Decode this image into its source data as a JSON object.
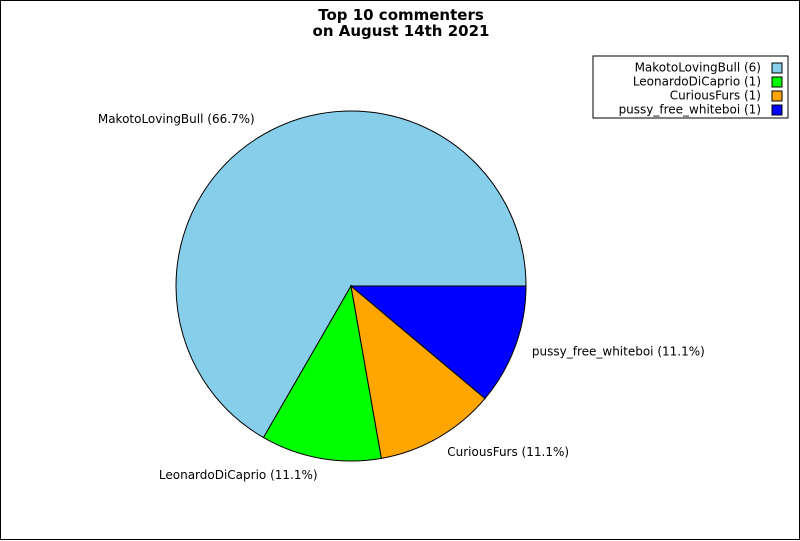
{
  "chart_data": {
    "type": "pie",
    "title_lines": [
      "Top 10 commenters",
      "on August 14th 2021"
    ],
    "slices": [
      {
        "name": "MakotoLovingBull",
        "value": 6,
        "percent_label": "MakotoLovingBull (66.7%)",
        "legend_label": "MakotoLovingBull (6)",
        "color": "#87ceeb"
      },
      {
        "name": "LeonardoDiCaprio",
        "value": 1,
        "percent_label": "LeonardoDiCaprio (11.1%)",
        "legend_label": "LeonardoDiCaprio (1)",
        "color": "#00ff00"
      },
      {
        "name": "CuriousFurs",
        "value": 1,
        "percent_label": "CuriousFurs (11.1%)",
        "legend_label": "CuriousFurs (1)",
        "color": "#ffa500"
      },
      {
        "name": "pussy_free_whiteboi",
        "value": 1,
        "percent_label": "pussy_free_whiteboi (11.1%)",
        "legend_label": "pussy_free_whiteboi (1)",
        "color": "#0000ff"
      }
    ],
    "start_angle_deg": 0,
    "direction": "counterclockwise",
    "legend_position": "top-right"
  }
}
